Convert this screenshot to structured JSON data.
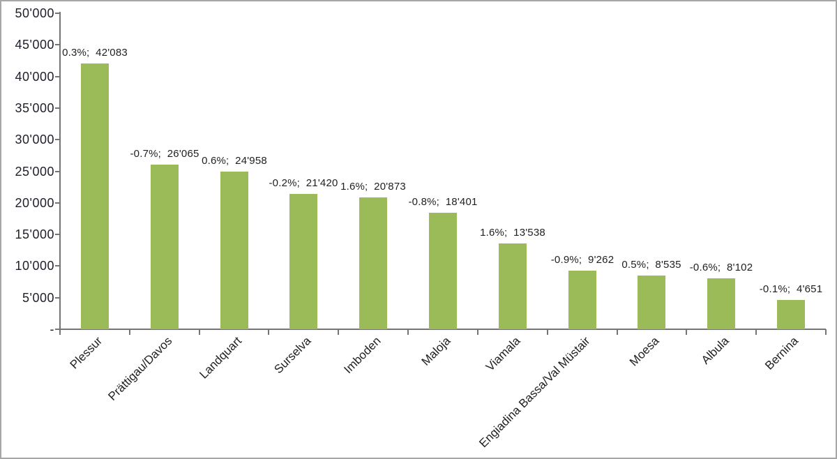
{
  "chart_data": {
    "type": "bar",
    "title": "",
    "xlabel": "",
    "ylabel": "",
    "categories": [
      "Plessur",
      "Prättigau/Davos",
      "Landquart",
      "Surselva",
      "Imboden",
      "Maloja",
      "Viamala",
      "Engiadina Bassa/Val Müstair",
      "Moesa",
      "Albula",
      "Bernina"
    ],
    "values": [
      42083,
      26065,
      24958,
      21420,
      20873,
      18401,
      13538,
      9262,
      8535,
      8102,
      4651
    ],
    "data_labels": [
      "0.3%;  42'083",
      "-0.7%;  26'065",
      "0.6%;  24'958",
      "-0.2%;  21'420",
      "1.6%;  20'873",
      "-0.8%;  18'401",
      "1.6%;  13'538",
      "-0.9%;  9'262",
      "0.5%;  8'535",
      "-0.6%;  8'102",
      "-0.1%;  4'651"
    ],
    "percent_changes": [
      "0.3%",
      "-0.7%",
      "0.6%",
      "-0.2%",
      "1.6%",
      "-0.8%",
      "1.6%",
      "-0.9%",
      "0.5%",
      "-0.6%",
      "-0.1%"
    ],
    "y_tick_labels": [
      "50'000",
      "45'000",
      "40'000",
      "35'000",
      "30'000",
      "25'000",
      "20'000",
      "15'000",
      "10'000",
      "5'000",
      "-"
    ],
    "y_tick_values": [
      50000,
      45000,
      40000,
      35000,
      30000,
      25000,
      20000,
      15000,
      10000,
      5000,
      0
    ],
    "ylim": [
      0,
      50000
    ],
    "grid": "off",
    "legend": "none",
    "bar_color": "#9bbb59",
    "axis_color": "#747474",
    "text_color": "#1f1f1f",
    "frame_border_color": "#a6a6a6",
    "background_color": "#ffffff"
  }
}
